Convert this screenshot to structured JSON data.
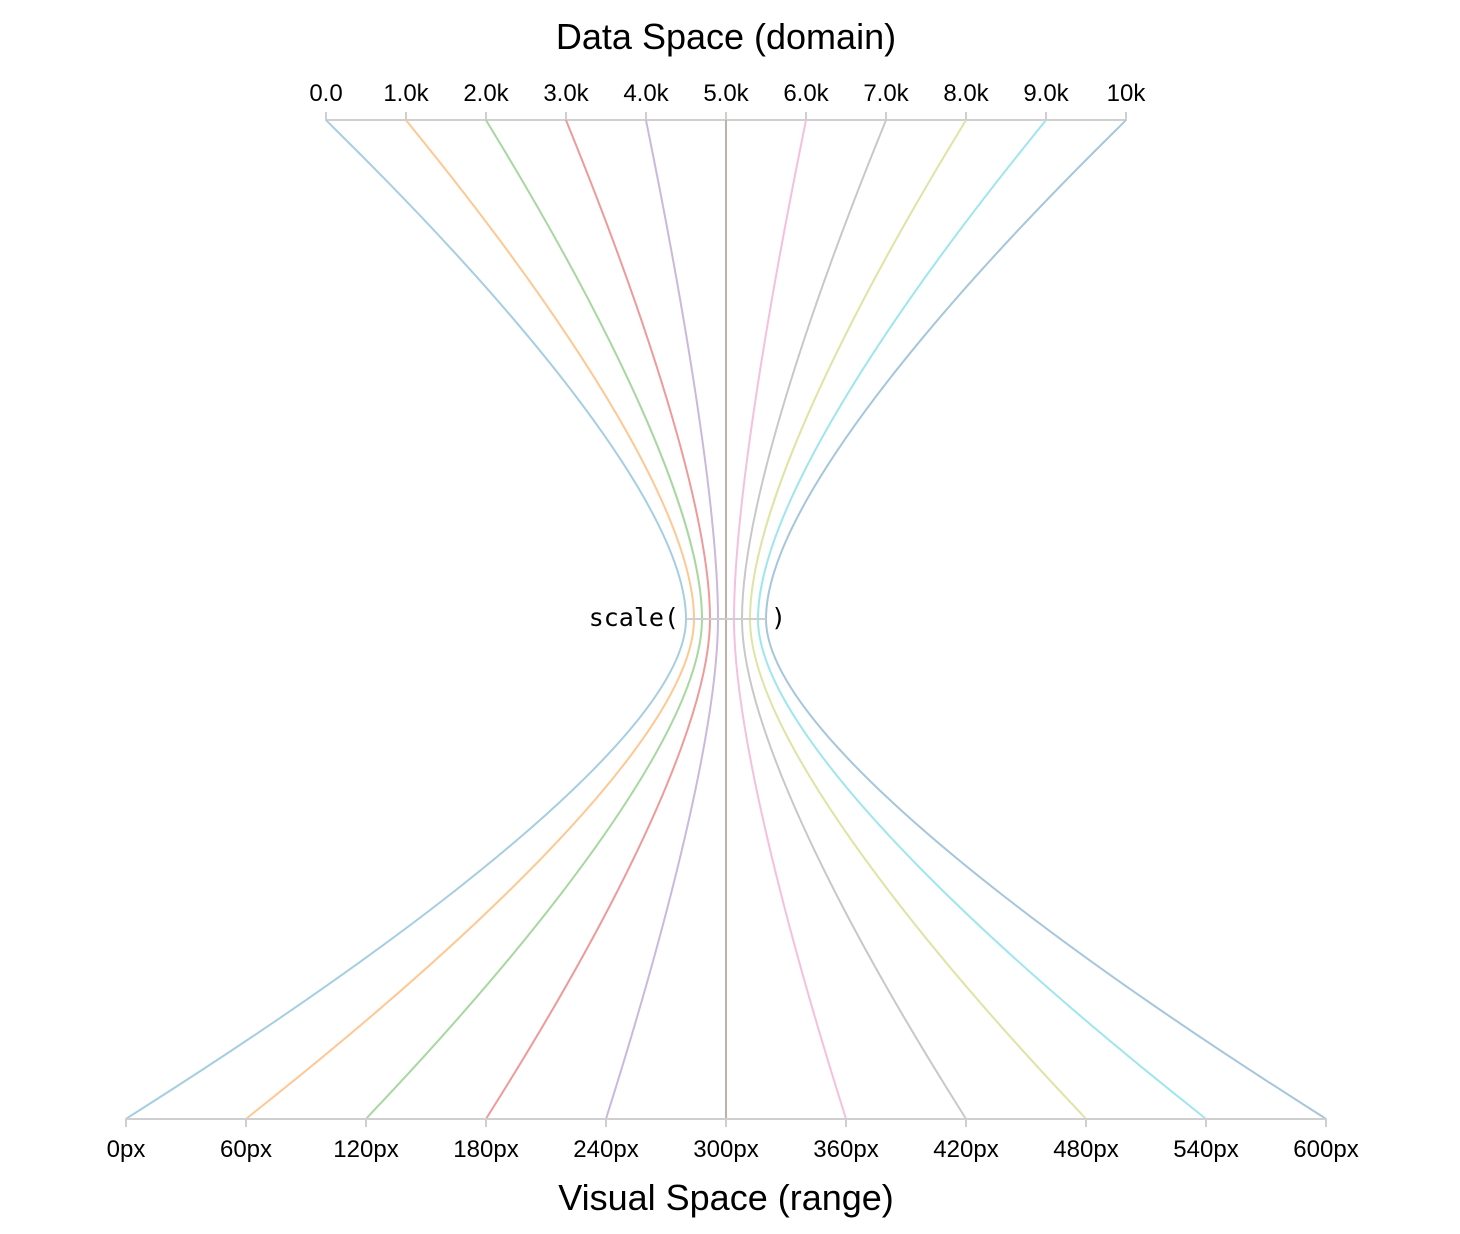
{
  "domain_axis": {
    "title": "Data Space (domain)",
    "ticks": [
      "0.0",
      "1.0k",
      "2.0k",
      "3.0k",
      "4.0k",
      "5.0k",
      "6.0k",
      "7.0k",
      "8.0k",
      "9.0k",
      "10k"
    ],
    "values": [
      0,
      1000,
      2000,
      3000,
      4000,
      5000,
      6000,
      7000,
      8000,
      9000,
      10000
    ]
  },
  "range_axis": {
    "title": "Visual Space (range)",
    "ticks": [
      "0px",
      "60px",
      "120px",
      "180px",
      "240px",
      "300px",
      "360px",
      "420px",
      "480px",
      "540px",
      "600px"
    ],
    "values": [
      0,
      60,
      120,
      180,
      240,
      300,
      360,
      420,
      480,
      540,
      600
    ]
  },
  "scale_label": {
    "open": "scale(",
    "close": ")"
  },
  "curve_colors": [
    "#a6cee3",
    "#ffc892",
    "#a7d8a0",
    "#ef9a9a",
    "#cbb8dc",
    "#bfb0aa",
    "#f5bfe0",
    "#c8c8c8",
    "#dfe3a4",
    "#9ee6ef",
    "#a6c6dc"
  ]
}
